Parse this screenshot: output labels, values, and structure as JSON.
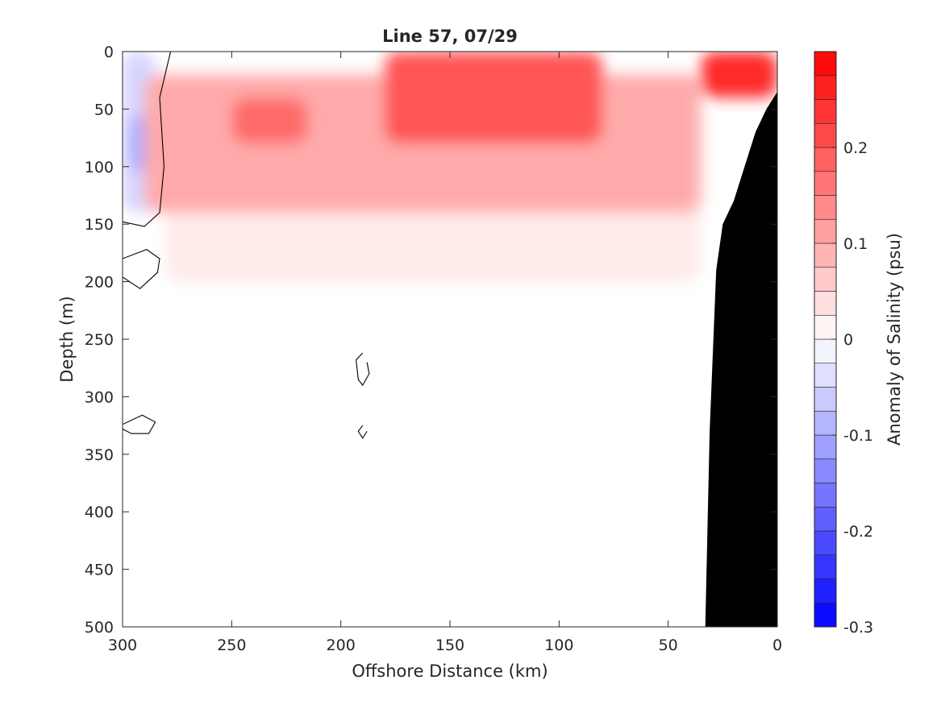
{
  "chart_data": {
    "type": "heatmap",
    "title": "Line 57, 07/29",
    "xlabel": "Offshore Distance (km)",
    "ylabel": "Depth (m)",
    "xlim": [
      300,
      0
    ],
    "ylim": [
      500,
      0
    ],
    "x_reversed": true,
    "y_reversed": true,
    "xticks": [
      300,
      250,
      200,
      150,
      100,
      50,
      0
    ],
    "yticks": [
      0,
      50,
      100,
      150,
      200,
      250,
      300,
      350,
      400,
      450,
      500
    ],
    "colorbar": {
      "label": "Anomaly of Salinity (psu)",
      "min": -0.3,
      "max": 0.3,
      "step": 0.025,
      "ticks": [
        -0.3,
        -0.2,
        -0.1,
        0,
        0.1,
        0.2
      ],
      "tick_labels": [
        "-0.3",
        "-0.2",
        "-0.1",
        "0",
        "0.1",
        "0.2"
      ]
    },
    "grid": false,
    "colormap": {
      "negative": "#0000ff",
      "neutral": "#ffffff",
      "positive": "#ff0000"
    },
    "bathymetry_color": "#000000",
    "bathymetry": [
      [
        0,
        35
      ],
      [
        5,
        50
      ],
      [
        10,
        70
      ],
      [
        15,
        100
      ],
      [
        20,
        130
      ],
      [
        25,
        150
      ],
      [
        28,
        190
      ],
      [
        31,
        330
      ],
      [
        33,
        500
      ],
      [
        0,
        500
      ]
    ],
    "anomaly_features": [
      {
        "kind": "negative",
        "value": -0.1,
        "x_range": [
          286,
          297
        ],
        "depth_range": [
          55,
          105
        ]
      },
      {
        "kind": "negative",
        "value": -0.05,
        "x_range": [
          285,
          300
        ],
        "depth_range": [
          0,
          140
        ]
      },
      {
        "kind": "positive",
        "value": 0.25,
        "x_range": [
          0,
          35
        ],
        "depth_range": [
          0,
          40
        ]
      },
      {
        "kind": "positive",
        "value": 0.2,
        "x_range": [
          80,
          180
        ],
        "depth_range": [
          0,
          80
        ]
      },
      {
        "kind": "positive",
        "value": 0.175,
        "x_range": [
          215,
          250
        ],
        "depth_range": [
          40,
          80
        ]
      },
      {
        "kind": "positive",
        "value": 0.1,
        "x_range": [
          35,
          290
        ],
        "depth_range": [
          20,
          140
        ]
      },
      {
        "kind": "positive",
        "value": 0.025,
        "x_range": [
          35,
          280
        ],
        "depth_range": [
          120,
          200
        ]
      }
    ],
    "zero_contours": [
      {
        "id": "west-boundary",
        "points": [
          [
            278,
            0
          ],
          [
            283,
            40
          ],
          [
            281,
            100
          ],
          [
            283,
            140
          ],
          [
            290,
            152
          ],
          [
            300,
            148
          ]
        ]
      },
      {
        "id": "loop-195",
        "points": [
          [
            300,
            180
          ],
          [
            289,
            172
          ],
          [
            283,
            180
          ],
          [
            284,
            192
          ],
          [
            292,
            206
          ],
          [
            300,
            196
          ]
        ]
      },
      {
        "id": "loop-275",
        "points": [
          [
            190,
            262
          ],
          [
            193,
            268
          ],
          [
            192,
            285
          ],
          [
            190,
            290
          ],
          [
            187,
            280
          ],
          [
            188,
            270
          ]
        ]
      },
      {
        "id": "loop-325",
        "points": [
          [
            300,
            324
          ],
          [
            291,
            316
          ],
          [
            285,
            322
          ],
          [
            288,
            332
          ],
          [
            296,
            332
          ],
          [
            300,
            328
          ]
        ]
      },
      {
        "id": "loop-330",
        "points": [
          [
            190,
            325
          ],
          [
            192,
            330
          ],
          [
            190,
            336
          ],
          [
            188,
            330
          ]
        ]
      }
    ]
  }
}
